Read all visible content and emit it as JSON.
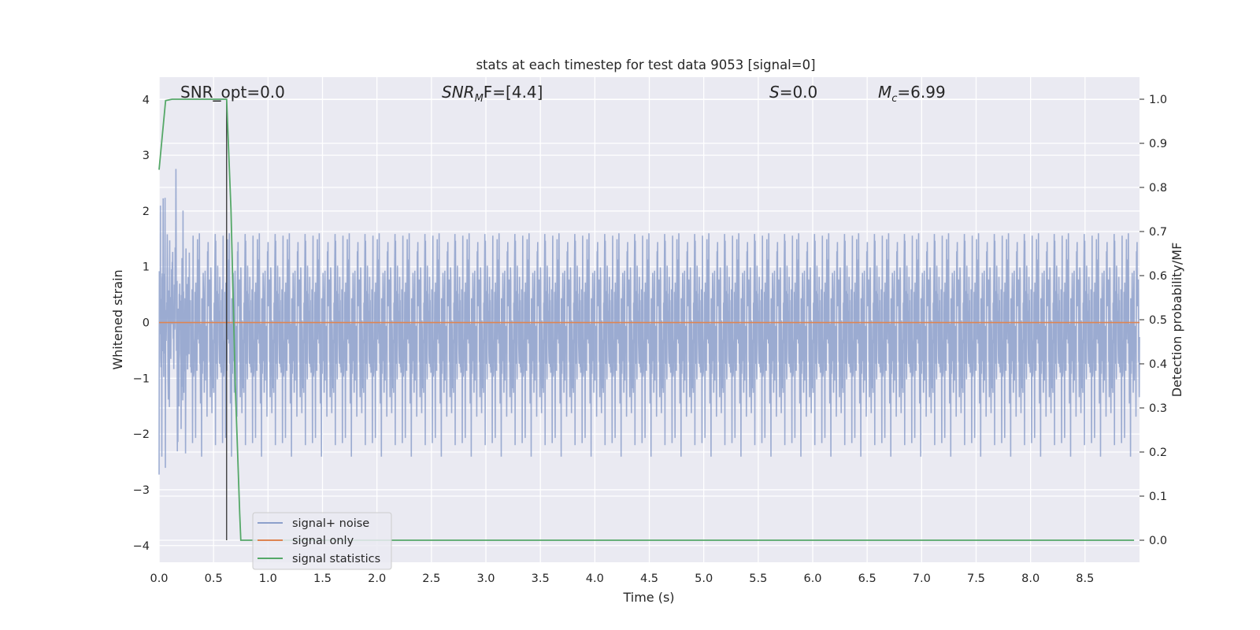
{
  "chart_data": {
    "type": "line",
    "title": "stats at each timestep for test data 9053 [signal=0]",
    "xlabel": "Time (s)",
    "ylabel": "Whitened strain",
    "ylabel_right": "Detection probability/MF",
    "xlim": [
      0.0,
      9.0
    ],
    "ylim": [
      -4.3,
      4.4
    ],
    "ylim_right": [
      -0.05,
      1.05
    ],
    "x_ticks": [
      "0.0",
      "0.5",
      "1.0",
      "1.5",
      "2.0",
      "2.5",
      "3.0",
      "3.5",
      "4.0",
      "4.5",
      "5.0",
      "5.5",
      "6.0",
      "6.5",
      "7.0",
      "7.5",
      "8.0",
      "8.5"
    ],
    "y_ticks": [
      "4",
      "3",
      "2",
      "1",
      "0",
      "−1",
      "−2",
      "−3",
      "−4"
    ],
    "y_ticks_right": [
      "1.0",
      "0.9",
      "0.8",
      "0.7",
      "0.6",
      "0.5",
      "0.4",
      "0.3",
      "0.2",
      "0.1",
      "0.0"
    ],
    "grid": true,
    "annotations": {
      "snr_opt": "SNR_opt=0.0",
      "snr_mf_sym": "SNR",
      "snr_mf_sub": "M",
      "snr_mf_rest": "F=[4.4]",
      "s_sym": "S",
      "s_rest": "=0.0",
      "mc_sym": "M",
      "mc_sub": "c",
      "mc_rest": "=6.99"
    },
    "marker_line_x": 0.62,
    "legend": {
      "position": "lower-left",
      "entries": [
        "signal+ noise",
        "signal only",
        "signal statistics"
      ]
    },
    "series": [
      {
        "name": "signal+ noise",
        "axis": "left",
        "color": "#8da0cb",
        "description_note_free": true,
        "noise_std": 0.95,
        "x_range": [
          0.0,
          9.0
        ]
      },
      {
        "name": "signal only",
        "axis": "left",
        "color": "#dd8452",
        "x": [
          0.0,
          9.0
        ],
        "y": [
          0.0,
          0.0
        ]
      },
      {
        "name": "signal statistics",
        "axis": "right",
        "color": "#55a868",
        "x": [
          0.0,
          0.06,
          0.12,
          0.2,
          0.3,
          0.4,
          0.5,
          0.6,
          0.62,
          0.66,
          0.7,
          0.74,
          0.75,
          0.8,
          1.0,
          2.0,
          3.0,
          4.0,
          5.0,
          6.0,
          7.0,
          8.0,
          8.95
        ],
        "y": [
          0.84,
          0.997,
          1.0,
          1.0,
          1.0,
          1.0,
          1.0,
          1.0,
          1.0,
          0.75,
          0.35,
          0.06,
          0.0,
          0.0,
          0.0,
          0.0,
          0.0,
          0.0,
          0.0,
          0.0,
          0.0,
          0.0,
          0.0
        ]
      }
    ]
  }
}
